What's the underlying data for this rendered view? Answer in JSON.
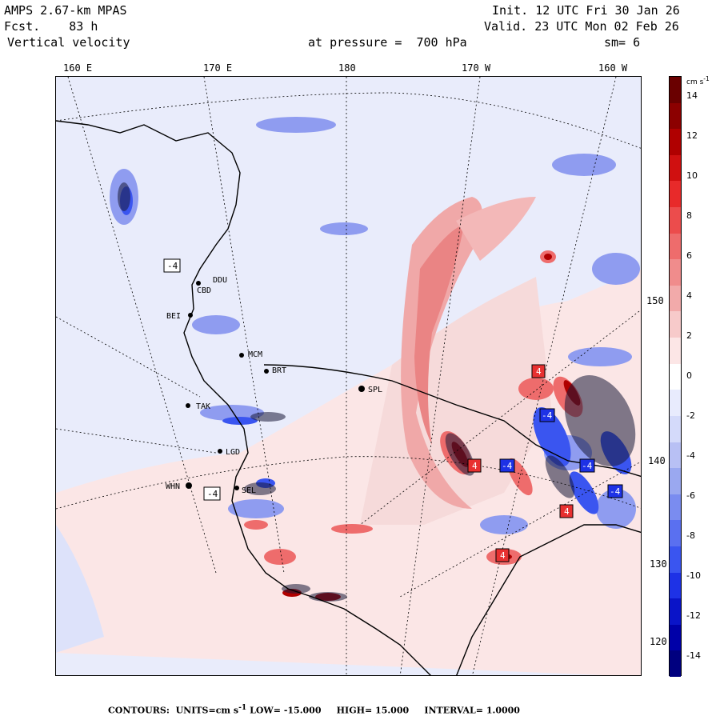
{
  "header": {
    "model": "AMPS 2.67-km MPAS",
    "forecast_label": "Fcst.",
    "forecast_hours": "83 h",
    "field": "Vertical velocity",
    "init_label": "Init.",
    "init_time": "12 UTC Fri 30 Jan 26",
    "valid_label": "Valid.",
    "valid_time": "23 UTC Mon 02 Feb 26",
    "pressure_label": "at pressure =",
    "pressure_value": "700 hPa",
    "smooth": "sm= 6"
  },
  "longitude_labels": [
    "160 E",
    "170 E",
    "180",
    "170 W",
    "160 W"
  ],
  "latitude_labels": [
    "150 W",
    "140 W",
    "130 W",
    "120 W"
  ],
  "stations": [
    "DDU",
    "CBD",
    "MCM",
    "BEI",
    "BRT",
    "TAK",
    "SPL",
    "LGD",
    "WHN",
    "SEL"
  ],
  "contour_box_labels": [
    "-4",
    "-4",
    "4",
    "-4",
    "-4",
    "4",
    "-4",
    "4",
    "-4",
    "4"
  ],
  "colorbar": {
    "units": "cm s",
    "units_exp": "-1",
    "ticks": [
      "14",
      "12",
      "10",
      "8",
      "6",
      "4",
      "2",
      "0",
      "-2",
      "-4",
      "-6",
      "-8",
      "-10",
      "-12",
      "-14"
    ],
    "min": -15,
    "max": 15,
    "interval": 1,
    "colors": [
      "#00007f",
      "#0000a8",
      "#0a14c8",
      "#1e32e6",
      "#3a55f0",
      "#5a70f0",
      "#7a8cf0",
      "#9aa8f0",
      "#b8c0f4",
      "#d4dafa",
      "#e8ebfd",
      "#ffffff",
      "#fce6e6",
      "#f7caca",
      "#f2aaaa",
      "#f08c8c",
      "#ee6c6c",
      "#ec4c4c",
      "#e82a2a",
      "#d01010",
      "#b00000",
      "#8c0000",
      "#6a0000"
    ]
  },
  "footer": {
    "contours_label": "CONTOURS:",
    "units_label": "UNITS=cm s",
    "units_exp": "-1",
    "low_label": "LOW=",
    "low_value": "-15.000",
    "high_label": "HIGH=",
    "high_value": "15.000",
    "interval_label": "INTERVAL=",
    "interval_value": "1.0000"
  }
}
